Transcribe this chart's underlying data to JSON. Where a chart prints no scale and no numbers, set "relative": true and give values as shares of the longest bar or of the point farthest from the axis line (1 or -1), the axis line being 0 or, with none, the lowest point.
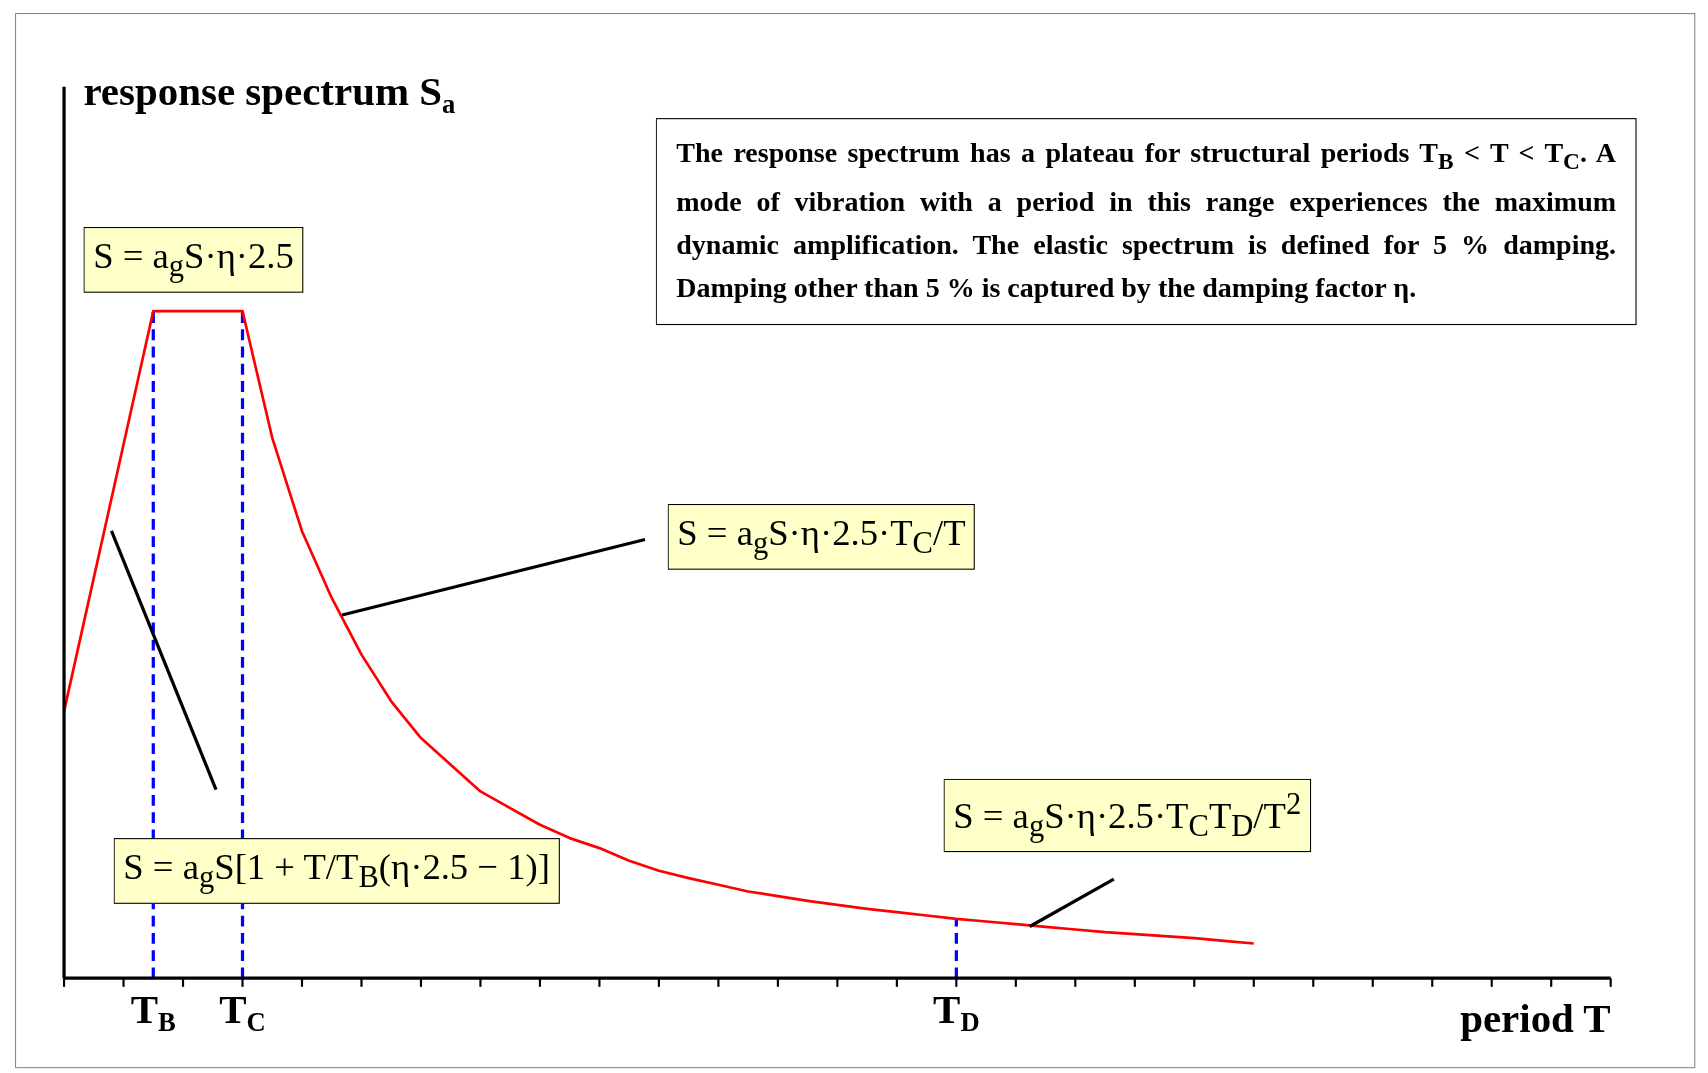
{
  "chart_data": {
    "type": "line",
    "relative": true,
    "xlabel": "period T",
    "ylabel": "response spectrum S$_{a}$",
    "categories": [
      null,
      null,
      null,
      "T$_{B}$",
      null,
      null,
      "T$_{C}$",
      null,
      null,
      null,
      null,
      null,
      null,
      null,
      null,
      null,
      null,
      null,
      null,
      null,
      null,
      null,
      null,
      null,
      null,
      null,
      null,
      null,
      null,
      null,
      "T$_{D}$",
      null,
      null,
      null,
      null,
      null,
      null,
      null,
      null,
      null,
      null,
      null,
      null,
      null,
      null,
      null,
      null,
      null,
      null,
      null,
      null,
      null,
      null
    ],
    "series": [
      {
        "color": "#ff0000",
        "values": [
          0.4,
          0.6,
          0.8,
          1,
          1,
          1,
          1,
          0.81,
          0.67,
          0.57,
          0.485,
          0.415,
          0.36,
          0.32,
          0.28,
          0.255,
          0.23,
          0.21,
          0.195,
          0.176,
          0.161,
          0.15,
          0.14,
          0.13,
          0.123,
          0.116,
          0.11,
          0.104,
          0.099,
          0.094,
          0.089,
          0.085,
          0.081,
          0.077,
          0.073,
          0.069,
          0.066,
          0.063,
          0.06,
          0.056,
          0.052,
          null,
          null,
          null,
          null,
          null,
          null,
          null,
          null,
          null,
          null,
          null,
          null
        ]
      }
    ],
    "marker": "none",
    "line_style": "solid",
    "ref_lines": [
      {
        "axis": "x",
        "value": "T$_{B}$",
        "color": "#0000ff",
        "line_style": "dashed"
      },
      {
        "axis": "x",
        "value": "T$_{C}$",
        "color": "#0000ff",
        "line_style": "dashed"
      },
      {
        "axis": "x",
        "value": "T$_{D}$",
        "color": "#0000ff",
        "line_style": "dashed"
      }
    ],
    "annotations": [
      "The response spectrum has a plateau for structural periods T$_{B}$ < T < T$_{C}$. A mode of vibration with a period in this range experiences the maximum dynamic amplification. The elastic spectrum is defined for 5 % damping. Damping other than 5 % is captured by the damping factor η.",
      "S = a$_{g}$S·η·2.5",
      "S = a$_{g}$S[1 + T/T$_{B}$(η·2.5 − 1)]",
      "S = a$_{g}$S·η·2.5·T$_{C}$/T",
      "S = a$_{g}$S·η·2.5·T$_{C}$T$_{D}$/T$^{2}$"
    ]
  }
}
